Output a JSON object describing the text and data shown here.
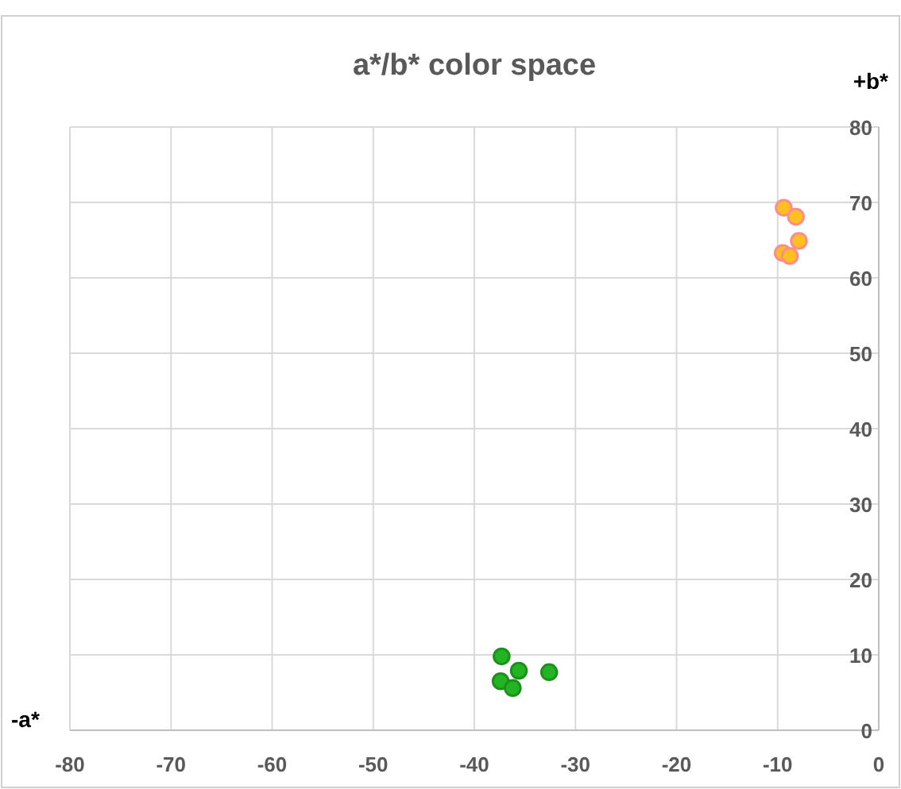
{
  "chart_data": {
    "type": "scatter",
    "title": "a*/b* color space",
    "xlabel": "-a*",
    "ylabel": "+b*",
    "xlim": [
      -80,
      0
    ],
    "xticks": [
      -80,
      -70,
      -60,
      -50,
      -40,
      -30,
      -20,
      -10,
      0
    ],
    "ylim": [
      0,
      80
    ],
    "yticks": [
      0,
      10,
      20,
      30,
      40,
      50,
      60,
      70,
      80
    ],
    "grid": true,
    "marker": "circle",
    "series": [
      {
        "color": "#22b422",
        "x": [
          -37.3,
          -37.4,
          -35.6,
          -36.2,
          -32.6
        ],
        "values": [
          9.8,
          6.5,
          7.9,
          5.6,
          7.7
        ]
      },
      {
        "color": "#ffc020",
        "x": [
          -9.4,
          -8.2,
          -7.9,
          -9.5,
          -8.8
        ],
        "values": [
          69.3,
          68.1,
          64.9,
          63.3,
          62.9
        ]
      }
    ]
  }
}
